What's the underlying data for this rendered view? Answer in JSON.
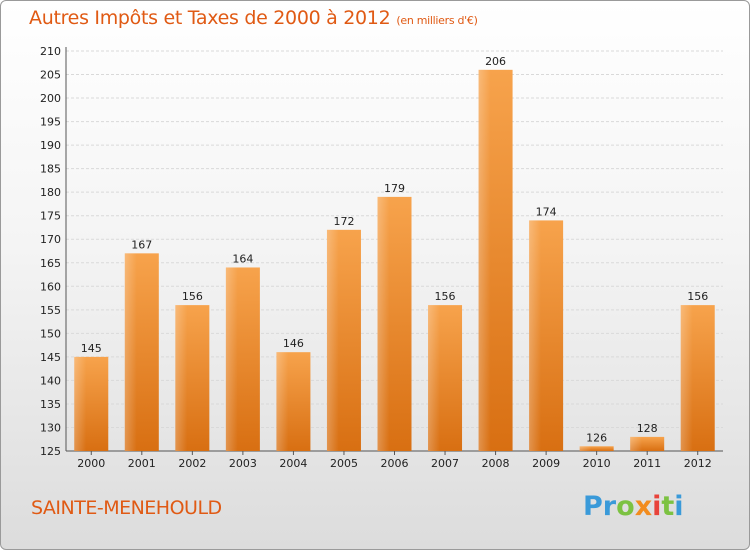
{
  "title": {
    "main": "Autres Impôts et Taxes de 2000 à 2012",
    "sub": "(en milliers d'€)"
  },
  "location": "SAINTE-MENEHOULD",
  "logo": {
    "letters": [
      {
        "char": "P",
        "color": "#3a9ad9"
      },
      {
        "char": "r",
        "color": "#3a9ad9"
      },
      {
        "char": "o",
        "color": "#7cc242"
      },
      {
        "char": "x",
        "color": "#f28c1e"
      },
      {
        "char": "i",
        "color": "#e8433a"
      },
      {
        "char": "t",
        "color": "#7cc242"
      },
      {
        "char": "i",
        "color": "#3a9ad9"
      }
    ]
  },
  "colors": {
    "title": "#e05a14",
    "bar_light": "#f7a34c",
    "bar_dark": "#d86f12",
    "grid": "#d9d9d9",
    "axis_text": "#222222"
  },
  "chart_data": {
    "type": "bar",
    "title": "Autres Impôts et Taxes de 2000 à 2012",
    "subtitle": "(en milliers d'€)",
    "xlabel": "",
    "ylabel": "",
    "categories": [
      "2000",
      "2001",
      "2002",
      "2003",
      "2004",
      "2005",
      "2006",
      "2007",
      "2008",
      "2009",
      "2010",
      "2011",
      "2012"
    ],
    "values": [
      145,
      167,
      156,
      164,
      146,
      172,
      179,
      156,
      206,
      174,
      126,
      128,
      156
    ],
    "ylim": [
      125,
      210
    ],
    "yticks": [
      125,
      130,
      135,
      140,
      145,
      150,
      155,
      160,
      165,
      170,
      175,
      180,
      185,
      190,
      195,
      200,
      205,
      210
    ],
    "grid": true,
    "legend": "none"
  }
}
